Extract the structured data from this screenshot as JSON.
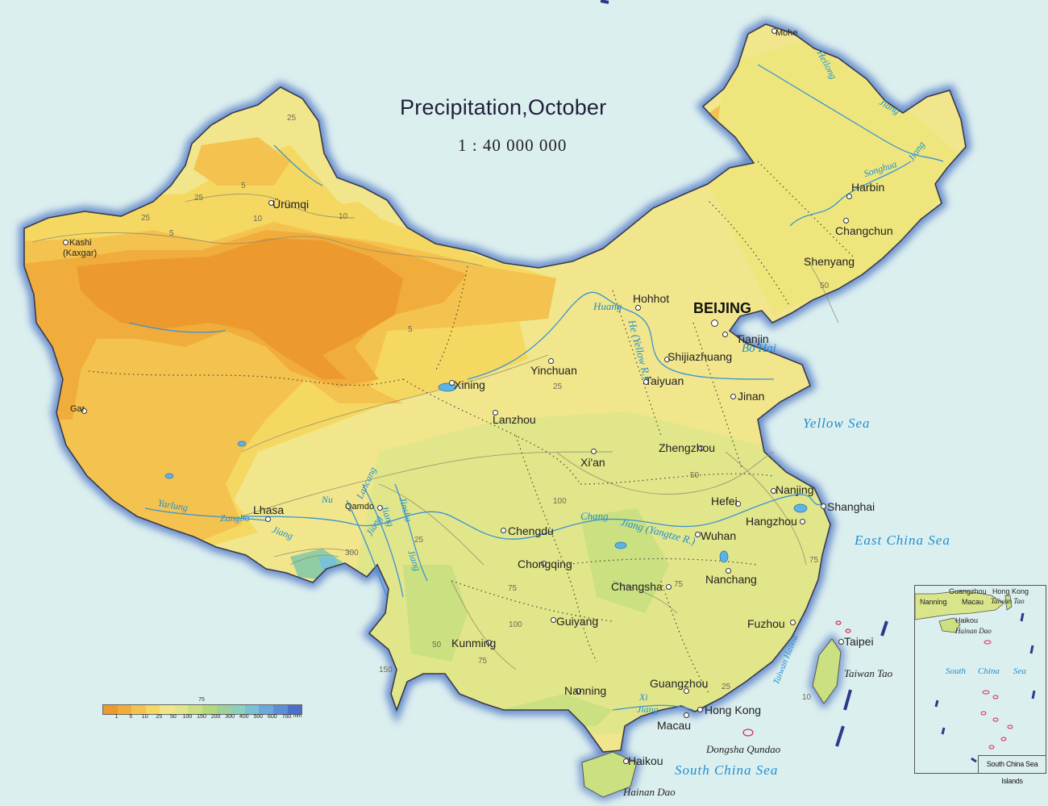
{
  "map": {
    "title": "Precipitation,October",
    "scale": "1 : 40 000 000"
  },
  "colors": {
    "sea": "#dcefef",
    "border_glow": "#5f84c9",
    "class_lt1": "#ec9a2e",
    "class_1_5": "#f1ad3c",
    "class_5_10": "#f4c24e",
    "class_10_25": "#f5d861",
    "class_25_50": "#f1e68b",
    "class_50_100": "#e2e68a",
    "class_100_150": "#cbe080",
    "class_high": "#8fcda5",
    "river": "#3a93d4"
  },
  "legend": {
    "top_label": "75",
    "ticks": [
      "1",
      "5",
      "10",
      "25",
      "50",
      "100",
      "150",
      "200",
      "300",
      "400",
      "500",
      "600",
      "700"
    ],
    "unit": "mm",
    "swatches": [
      "#ec9a2e",
      "#f1ad3c",
      "#f4c24e",
      "#f5d861",
      "#f1e68b",
      "#e2e68a",
      "#cbe080",
      "#b3d97a",
      "#9fd19a",
      "#8fcfbe",
      "#79c1d6",
      "#6aa9da",
      "#5b8ed8",
      "#4a6fcd"
    ]
  },
  "capital": "BEIJING",
  "cities": {
    "mohe": "Mohe",
    "harbin": "Harbin",
    "changchun": "Changchun",
    "shenyang": "Shenyang",
    "hohhot": "Hohhot",
    "tianjin": "Tianjin",
    "shijiazhuang": "Shijiazhuang",
    "taiyuan": "Taiyuan",
    "jinan": "Jinan",
    "yinchuan": "Yinchuan",
    "xining": "Xining",
    "lanzhou": "Lanzhou",
    "zhengzhou": "Zhengzhou",
    "xian": "Xi'an",
    "nanjing": "Nanjing",
    "shanghai": "Shanghai",
    "hefei": "Hefei",
    "hangzhou": "Hangzhou",
    "wuhan": "Wuhan",
    "nanchang": "Nanchang",
    "changsha": "Changsha",
    "fuzhou": "Fuzhou",
    "taipei": "Taipei",
    "chengdu": "Chengdu",
    "chongqing": "Chongqing",
    "guiyang": "Guiyang",
    "kunming": "Kunming",
    "nanning": "Nanning",
    "guangzhou": "Guangzhou",
    "hongkong": "Hong Kong",
    "macau": "Macau",
    "haikou": "Haikou",
    "lhasa": "Lhasa",
    "qamdo": "Qamdo",
    "urumqi": "Ürümqi",
    "kashi": "Kashi",
    "kaxgar": "(Kaxgar)",
    "gar": "Gar"
  },
  "seas": {
    "bohai": "Bo Hai",
    "yellow_sea": "Yellow Sea",
    "east_china_sea": "East China Sea",
    "south_china_sea": "South China Sea",
    "taiwan_haixia": "Taiwan Haixia"
  },
  "islands": {
    "taiwan_tao": "Taiwan Tao",
    "dongsha": "Dongsha Qundao",
    "hainan_dao": "Hainan Dao"
  },
  "rivers": {
    "heilong": "Heilong",
    "jiang_heilong": "Jiang",
    "songhua": "Songhua",
    "jiang_songhua": "Jiang",
    "huang": "Huang",
    "he_yellow": "He (Yellow R.)",
    "chang": "Chang",
    "jiang_yangtze": "Jiang (Yangtze R.)",
    "xi": "Xi",
    "jiang_xi": "Jiang",
    "yarlung": "Yarlung",
    "zangbo": "Zangbo",
    "jiang_yarlung": "Jiang",
    "nu": "Nu",
    "jiang_nu": "Jiang",
    "lancang": "Lancang",
    "jiang_lancang": "Jiang",
    "jinsha": "Jinsha",
    "jiang_jinsha": "Jiang"
  },
  "contours": {
    "c25a": "25",
    "c5a": "5",
    "c25b": "25",
    "c10a": "10",
    "c25c": "25",
    "c5b": "5",
    "c10b": "10",
    "c5c": "5",
    "c25d": "25",
    "c50a": "50",
    "c50b": "50",
    "c75a": "75",
    "c25e": "25",
    "c100a": "100",
    "c75b": "75",
    "c100b": "100",
    "c150": "150",
    "c75c": "75",
    "c25f": "25",
    "c300": "300",
    "c10c": "10",
    "c75d": "75",
    "c50c": "50"
  },
  "inset": {
    "caption": "South China Sea Islands",
    "guangzhou": "Guangzhou",
    "hongkong": "Hong Kong",
    "nanning": "Nanning",
    "macau": "Macau",
    "taiwan_tao": "Taiwan Tao",
    "haikou": "Haikou",
    "hainan_dao": "Hainan Dao",
    "south": "South",
    "china": "China",
    "sea": "Sea"
  }
}
